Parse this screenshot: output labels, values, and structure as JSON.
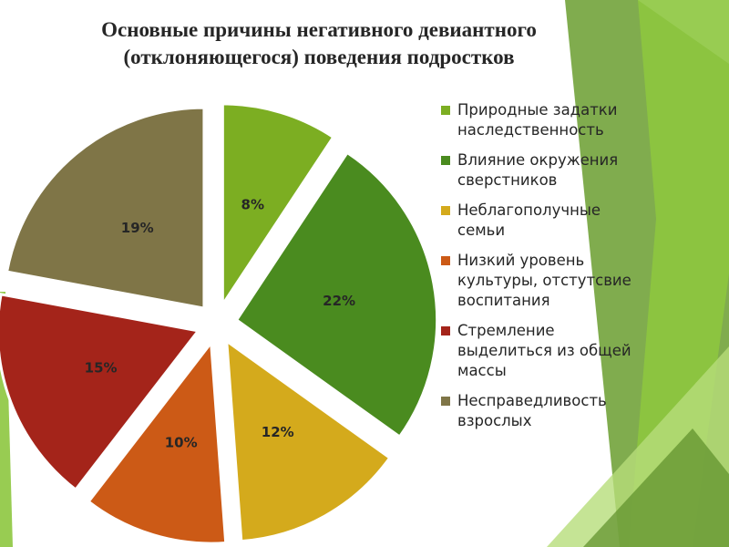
{
  "title": {
    "line1": "Основные причины негативного девиантного",
    "line2": "(отклоняющегося) поведения подростков"
  },
  "chart_data": {
    "type": "pie",
    "title": "Основные причины негативного девиантного (отклоняющегося) поведения подростков",
    "slices": [
      {
        "name": "Природные задатки наследственность",
        "value": 8,
        "label": "8%",
        "color": "#7cae22"
      },
      {
        "name": "Влияние окружения сверстников",
        "value": 22,
        "label": "22%",
        "color": "#4a8b1f"
      },
      {
        "name": "Неблагополучные семьи",
        "value": 12,
        "label": "12%",
        "color": "#d4aa1c"
      },
      {
        "name": "Низкий уровень культуры, отстутсвие воспитания",
        "value": 10,
        "label": "10%",
        "color": "#cc5a16"
      },
      {
        "name": "Стремление выделиться из общей массы",
        "value": 15,
        "label": "15%",
        "color": "#a4241a"
      },
      {
        "name": "Несправедливость взрослых",
        "value": 19,
        "label": "19%",
        "color": "#7f7547"
      }
    ],
    "legend_position": "right",
    "exploded": true
  },
  "legend": [
    {
      "lines": [
        "Природные задатки",
        "наследственность"
      ],
      "color": "#7cae22"
    },
    {
      "lines": [
        "Влияние окружения",
        "сверстников"
      ],
      "color": "#4a8b1f"
    },
    {
      "lines": [
        "Неблагополучные",
        "семьи"
      ],
      "color": "#d4aa1c"
    },
    {
      "lines": [
        "Низкий уровень",
        "культуры, отстутсвие",
        "воспитания"
      ],
      "color": "#cc5a16"
    },
    {
      "lines": [
        "Стремление",
        "выделиться из общей",
        "массы"
      ],
      "color": "#a4241a"
    },
    {
      "lines": [
        "Несправедливость",
        "взрослых"
      ],
      "color": "#7f7547"
    }
  ],
  "theme": {
    "accent_greens": [
      "#8dc63f",
      "#6a9e2f",
      "#b7dd7a",
      "#5c8f2a"
    ]
  }
}
